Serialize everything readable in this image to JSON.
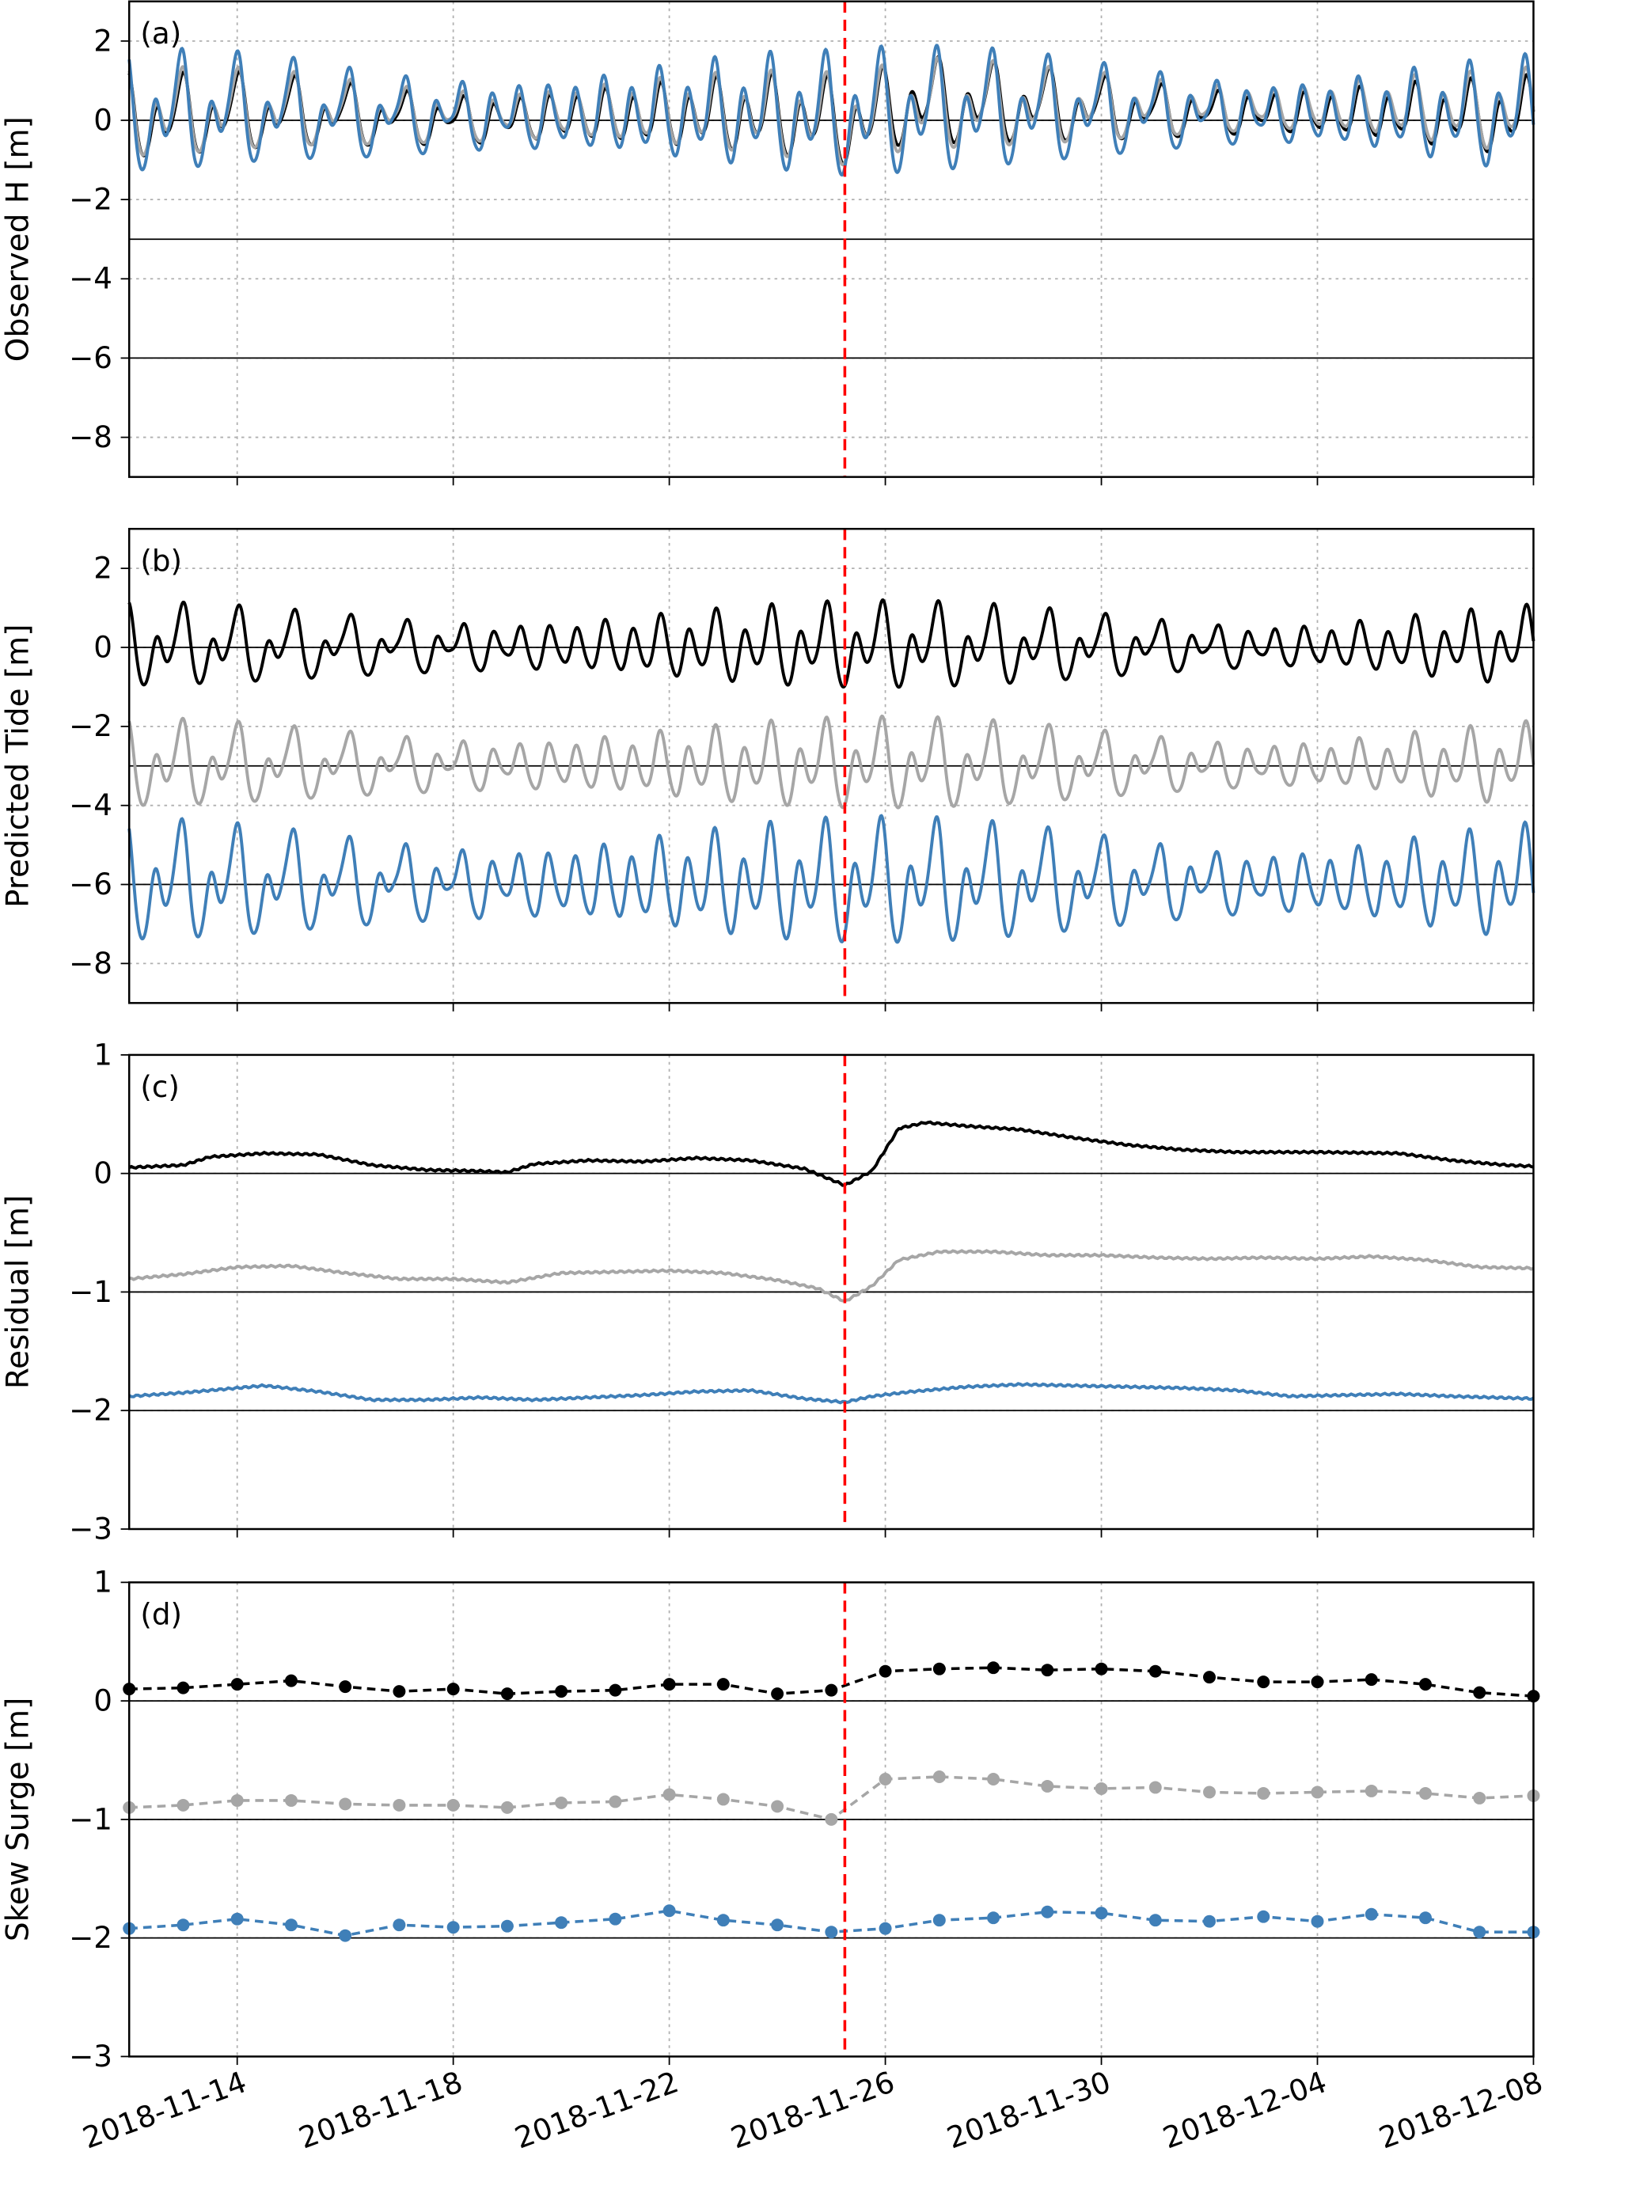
{
  "chart_data": [
    {
      "type": "line",
      "panel_label": "(a)",
      "ylabel": "Observed H [m]",
      "ylim": [
        -9,
        3
      ],
      "yticks": [
        -8,
        -6,
        -4,
        -2,
        0,
        2
      ],
      "reference_lines": [
        0,
        -3,
        -6
      ],
      "series_colors": [
        "#000000",
        "#a6a6a6",
        "#3f7fb8"
      ],
      "composition": "predicted tide + residual"
    },
    {
      "type": "line",
      "panel_label": "(b)",
      "ylabel": "Predicted Tide [m]",
      "ylim": [
        -9,
        3
      ],
      "yticks": [
        -8,
        -6,
        -4,
        -2,
        0,
        2
      ],
      "reference_lines": [
        0,
        -3,
        -6
      ],
      "series_colors": [
        "#000000",
        "#a6a6a6",
        "#3f7fb8"
      ]
    },
    {
      "type": "line",
      "panel_label": "(c)",
      "ylabel": "Residual [m]",
      "ylim": [
        -3,
        1
      ],
      "yticks": [
        -3,
        -2,
        -1,
        0,
        1
      ],
      "reference_lines": [
        0,
        -1,
        -2
      ],
      "series": [
        {
          "color": "#000000",
          "points": [
            [
              "2018-11-12 00:00",
              0.05
            ],
            [
              "2018-11-13 00:00",
              0.07
            ],
            [
              "2018-11-13 12:00",
              0.14
            ],
            [
              "2018-11-14 12:00",
              0.17
            ],
            [
              "2018-11-15 12:00",
              0.16
            ],
            [
              "2018-11-16 12:00",
              0.07
            ],
            [
              "2018-11-17 12:00",
              0.03
            ],
            [
              "2018-11-18 12:00",
              0.02
            ],
            [
              "2018-11-19 00:00",
              0.01
            ],
            [
              "2018-11-19 12:00",
              0.08
            ],
            [
              "2018-11-20 12:00",
              0.11
            ],
            [
              "2018-11-21 12:00",
              0.1
            ],
            [
              "2018-11-22 12:00",
              0.13
            ],
            [
              "2018-11-23 12:00",
              0.11
            ],
            [
              "2018-11-24 12:00",
              0.04
            ],
            [
              "2018-11-25 06:00",
              -0.1
            ],
            [
              "2018-11-25 18:00",
              0.02
            ],
            [
              "2018-11-26 06:00",
              0.38
            ],
            [
              "2018-11-26 18:00",
              0.43
            ],
            [
              "2018-11-27 12:00",
              0.4
            ],
            [
              "2018-11-28 12:00",
              0.37
            ],
            [
              "2018-11-29 12:00",
              0.3
            ],
            [
              "2018-11-30 12:00",
              0.24
            ],
            [
              "2018-12-01 12:00",
              0.2
            ],
            [
              "2018-12-02 12:00",
              0.18
            ],
            [
              "2018-12-04 00:00",
              0.18
            ],
            [
              "2018-12-05 12:00",
              0.17
            ],
            [
              "2018-12-06 12:00",
              0.11
            ],
            [
              "2018-12-07 12:00",
              0.07
            ],
            [
              "2018-12-08 00:00",
              0.06
            ]
          ]
        },
        {
          "color": "#a6a6a6",
          "points": [
            [
              "2018-11-12 00:00",
              -0.89
            ],
            [
              "2018-11-13 00:00",
              -0.85
            ],
            [
              "2018-11-14 00:00",
              -0.79
            ],
            [
              "2018-11-15 00:00",
              -0.78
            ],
            [
              "2018-11-16 00:00",
              -0.84
            ],
            [
              "2018-11-17 00:00",
              -0.89
            ],
            [
              "2018-11-18 00:00",
              -0.89
            ],
            [
              "2018-11-19 00:00",
              -0.92
            ],
            [
              "2018-11-20 00:00",
              -0.84
            ],
            [
              "2018-11-21 00:00",
              -0.83
            ],
            [
              "2018-11-22 00:00",
              -0.82
            ],
            [
              "2018-11-23 00:00",
              -0.84
            ],
            [
              "2018-11-24 00:00",
              -0.9
            ],
            [
              "2018-11-24 18:00",
              -0.97
            ],
            [
              "2018-11-25 06:00",
              -1.08
            ],
            [
              "2018-11-25 18:00",
              -0.95
            ],
            [
              "2018-11-26 06:00",
              -0.73
            ],
            [
              "2018-11-27 00:00",
              -0.66
            ],
            [
              "2018-11-28 00:00",
              -0.66
            ],
            [
              "2018-11-29 00:00",
              -0.69
            ],
            [
              "2018-11-30 00:00",
              -0.69
            ],
            [
              "2018-12-01 00:00",
              -0.71
            ],
            [
              "2018-12-02 00:00",
              -0.72
            ],
            [
              "2018-12-03 00:00",
              -0.71
            ],
            [
              "2018-12-04 00:00",
              -0.72
            ],
            [
              "2018-12-05 00:00",
              -0.7
            ],
            [
              "2018-12-06 00:00",
              -0.73
            ],
            [
              "2018-12-07 00:00",
              -0.79
            ],
            [
              "2018-12-08 00:00",
              -0.8
            ]
          ]
        },
        {
          "color": "#3f7fb8",
          "points": [
            [
              "2018-11-12 00:00",
              -1.88
            ],
            [
              "2018-11-13 00:00",
              -1.85
            ],
            [
              "2018-11-14 00:00",
              -1.81
            ],
            [
              "2018-11-14 12:00",
              -1.79
            ],
            [
              "2018-11-15 12:00",
              -1.84
            ],
            [
              "2018-11-16 12:00",
              -1.91
            ],
            [
              "2018-11-17 12:00",
              -1.91
            ],
            [
              "2018-11-18 12:00",
              -1.89
            ],
            [
              "2018-11-19 12:00",
              -1.91
            ],
            [
              "2018-11-20 12:00",
              -1.89
            ],
            [
              "2018-11-21 12:00",
              -1.87
            ],
            [
              "2018-11-22 12:00",
              -1.84
            ],
            [
              "2018-11-23 12:00",
              -1.83
            ],
            [
              "2018-11-24 12:00",
              -1.9
            ],
            [
              "2018-11-25 06:00",
              -1.93
            ],
            [
              "2018-11-25 18:00",
              -1.88
            ],
            [
              "2018-11-26 12:00",
              -1.84
            ],
            [
              "2018-11-27 12:00",
              -1.8
            ],
            [
              "2018-11-28 12:00",
              -1.78
            ],
            [
              "2018-11-29 12:00",
              -1.79
            ],
            [
              "2018-11-30 12:00",
              -1.8
            ],
            [
              "2018-12-01 12:00",
              -1.81
            ],
            [
              "2018-12-02 12:00",
              -1.83
            ],
            [
              "2018-12-03 12:00",
              -1.88
            ],
            [
              "2018-12-04 12:00",
              -1.87
            ],
            [
              "2018-12-05 12:00",
              -1.86
            ],
            [
              "2018-12-06 12:00",
              -1.88
            ],
            [
              "2018-12-08 00:00",
              -1.9
            ]
          ]
        }
      ]
    },
    {
      "type": "line",
      "markers": true,
      "line_style": "dashed",
      "panel_label": "(d)",
      "ylabel": "Skew Surge [m]",
      "ylim": [
        -3,
        1
      ],
      "yticks": [
        -3,
        -2,
        -1,
        0,
        1
      ],
      "reference_lines": [
        0,
        -1,
        -2
      ],
      "dates": [
        "2018-11-12",
        "2018-11-13",
        "2018-11-14",
        "2018-11-15",
        "2018-11-16",
        "2018-11-17",
        "2018-11-18",
        "2018-11-19",
        "2018-11-20",
        "2018-11-21",
        "2018-11-22",
        "2018-11-23",
        "2018-11-24",
        "2018-11-25",
        "2018-11-26",
        "2018-11-27",
        "2018-11-28",
        "2018-11-29",
        "2018-11-30",
        "2018-12-01",
        "2018-12-02",
        "2018-12-03",
        "2018-12-04",
        "2018-12-05",
        "2018-12-06",
        "2018-12-07",
        "2018-12-08"
      ],
      "series": [
        {
          "color": "#000000",
          "values": [
            0.1,
            0.11,
            0.14,
            0.17,
            0.12,
            0.08,
            0.1,
            0.06,
            0.08,
            0.09,
            0.14,
            0.14,
            0.06,
            0.09,
            0.25,
            0.27,
            0.28,
            0.26,
            0.27,
            0.25,
            0.2,
            0.16,
            0.16,
            0.18,
            0.14,
            0.07,
            0.04
          ]
        },
        {
          "color": "#a6a6a6",
          "values": [
            -0.9,
            -0.88,
            -0.84,
            -0.84,
            -0.87,
            -0.88,
            -0.88,
            -0.9,
            -0.86,
            -0.85,
            -0.79,
            -0.83,
            -0.89,
            -1.0,
            -0.66,
            -0.64,
            -0.66,
            -0.72,
            -0.74,
            -0.73,
            -0.77,
            -0.78,
            -0.77,
            -0.76,
            -0.78,
            -0.82,
            -0.8
          ]
        },
        {
          "color": "#3f7fb8",
          "values": [
            -1.92,
            -1.89,
            -1.84,
            -1.89,
            -1.98,
            -1.89,
            -1.91,
            -1.9,
            -1.87,
            -1.84,
            -1.77,
            -1.85,
            -1.89,
            -1.95,
            -1.92,
            -1.85,
            -1.83,
            -1.78,
            -1.79,
            -1.85,
            -1.86,
            -1.82,
            -1.86,
            -1.8,
            -1.83,
            -1.95,
            -1.95
          ]
        }
      ]
    }
  ],
  "x_axis": {
    "xlim": [
      "2018-11-12",
      "2018-12-08"
    ],
    "ticks": [
      "2018-11-14",
      "2018-11-18",
      "2018-11-22",
      "2018-11-26",
      "2018-11-30",
      "2018-12-04",
      "2018-12-08"
    ]
  },
  "event_line": {
    "date": "2018-11-25 06:00",
    "color": "#ff0000"
  }
}
